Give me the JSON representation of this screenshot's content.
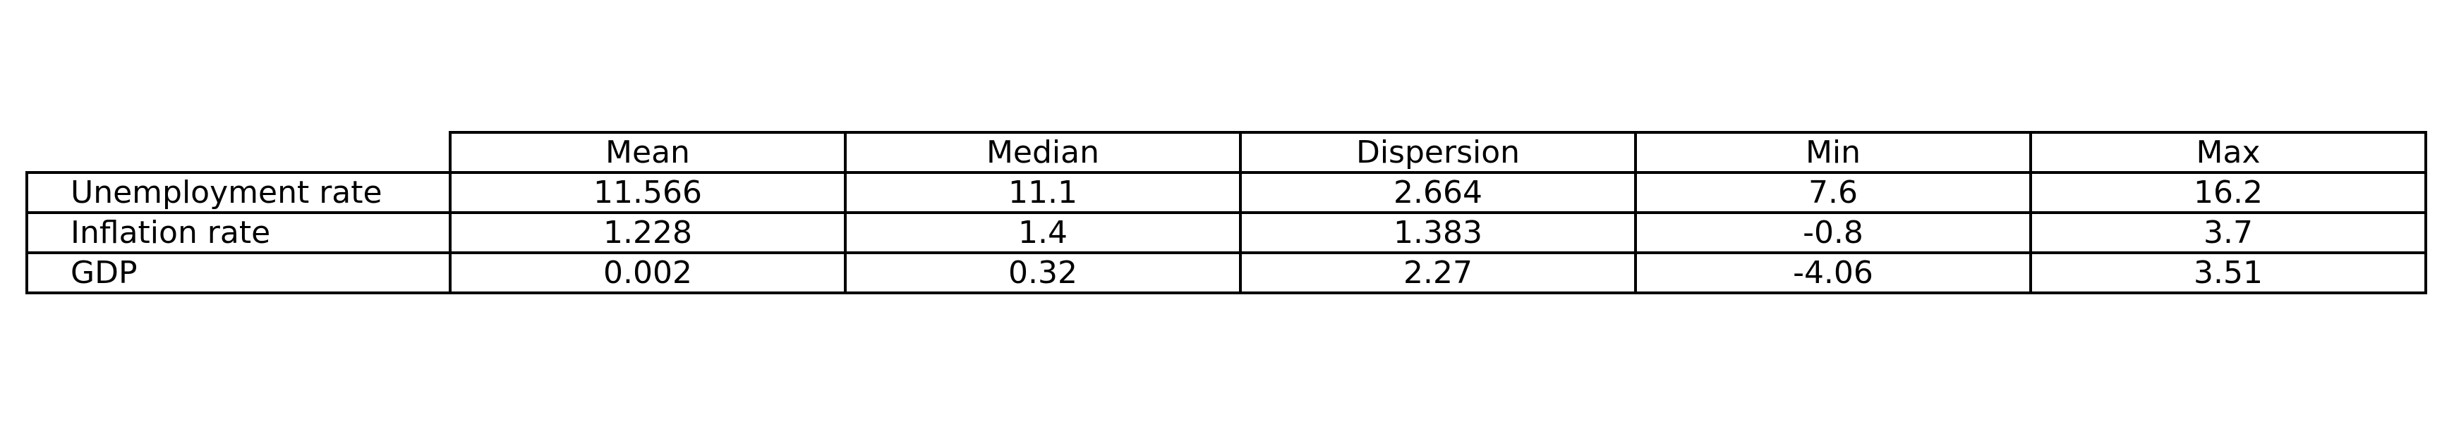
{
  "table": {
    "columns": [
      "Mean",
      "Median",
      "Dispersion",
      "Min",
      "Max"
    ],
    "rows": [
      {
        "label": "Unemployment rate",
        "values": [
          "11.566",
          "11.1",
          "2.664",
          "7.6",
          "16.2"
        ]
      },
      {
        "label": "Inflation rate",
        "values": [
          "1.228",
          "1.4",
          "1.383",
          "-0.8",
          "3.7"
        ]
      },
      {
        "label": "GDP",
        "values": [
          "0.002",
          "0.32",
          "2.27",
          "-4.06",
          "3.51"
        ]
      }
    ]
  }
}
